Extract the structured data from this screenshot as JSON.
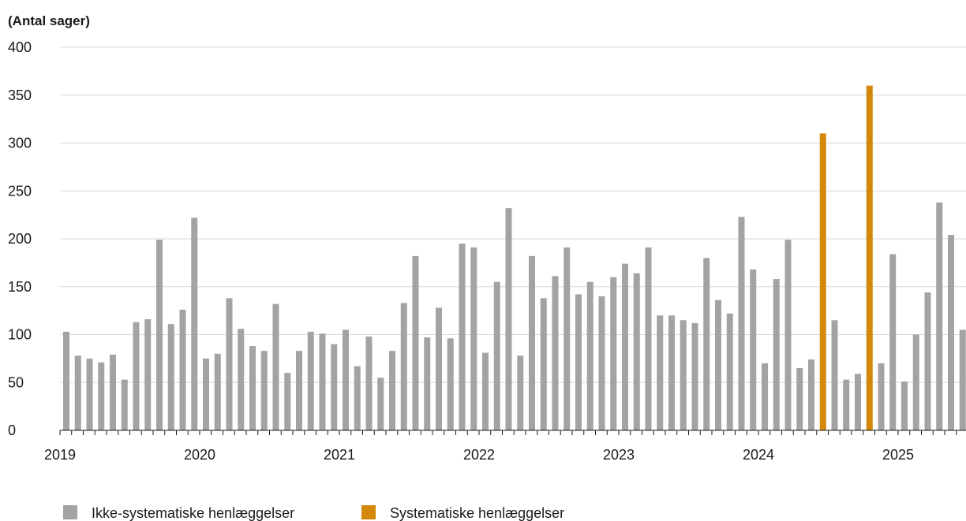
{
  "chart_data": {
    "type": "bar",
    "ylabel": "(Antal sager)",
    "ylim": [
      0,
      400
    ],
    "yticks": [
      0,
      50,
      100,
      150,
      200,
      250,
      300,
      350,
      400
    ],
    "grid": true,
    "x_start": "2019-01",
    "x_tick_labels": [
      "2019",
      "2020",
      "2021",
      "2022",
      "2023",
      "2024",
      "2025"
    ],
    "legend_position": "bottom-left",
    "colors": {
      "Ikke-systematiske henlæggelser": "#a3a3a3",
      "Systematiske henlæggelser": "#d4880a"
    },
    "series": [
      {
        "name": "Ikke-systematiske henlæggelser",
        "values": [
          103,
          78,
          75,
          71,
          79,
          53,
          113,
          116,
          199,
          111,
          126,
          222,
          75,
          80,
          138,
          106,
          88,
          83,
          132,
          60,
          83,
          103,
          101,
          90,
          105,
          67,
          98,
          55,
          83,
          133,
          182,
          97,
          128,
          96,
          195,
          191,
          81,
          155,
          232,
          78,
          182,
          138,
          161,
          191,
          142,
          155,
          140,
          160,
          174,
          164,
          191,
          120,
          120,
          115,
          112,
          180,
          136,
          122,
          223,
          168,
          70,
          158,
          199,
          65,
          74,
          0,
          115,
          53,
          59,
          0,
          70,
          184,
          51,
          100,
          144,
          238,
          204,
          105
        ]
      },
      {
        "name": "Systematiske henlæggelser",
        "values": [
          0,
          0,
          0,
          0,
          0,
          0,
          0,
          0,
          0,
          0,
          0,
          0,
          0,
          0,
          0,
          0,
          0,
          0,
          0,
          0,
          0,
          0,
          0,
          0,
          0,
          0,
          0,
          0,
          0,
          0,
          0,
          0,
          0,
          0,
          0,
          0,
          0,
          0,
          0,
          0,
          0,
          0,
          0,
          0,
          0,
          0,
          0,
          0,
          0,
          0,
          0,
          0,
          0,
          0,
          0,
          0,
          0,
          0,
          0,
          0,
          0,
          0,
          0,
          0,
          0,
          310,
          0,
          0,
          0,
          360,
          0,
          0,
          0,
          0,
          0,
          0,
          0,
          0
        ]
      }
    ]
  }
}
